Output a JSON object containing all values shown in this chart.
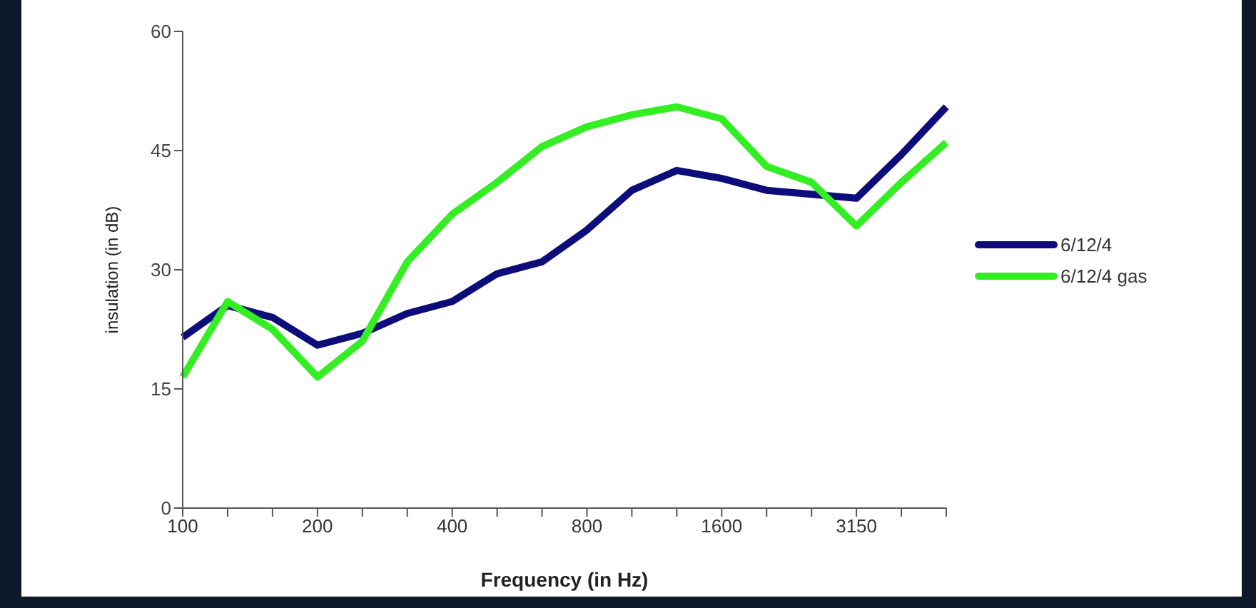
{
  "chart_data": {
    "type": "line",
    "xlabel": "Frequency (in Hz)",
    "ylabel": "insulation (in dB)",
    "categories": [
      "100",
      null,
      null,
      "200",
      null,
      null,
      "400",
      null,
      null,
      "800",
      null,
      null,
      "1600",
      null,
      null,
      "3150",
      null,
      null
    ],
    "series": [
      {
        "name": "6/12/4",
        "color": "#0c0c7a",
        "values": [
          21.5,
          25.5,
          24,
          20.5,
          22,
          24.5,
          26,
          29.5,
          31,
          35,
          40,
          42.5,
          41.5,
          40,
          39.5,
          39,
          44.5,
          50.5
        ]
      },
      {
        "name": "6/12/4 gas",
        "color": "#33ee22",
        "values": [
          16.5,
          26,
          22.5,
          16.5,
          21,
          31,
          37,
          41,
          45.5,
          48,
          49.5,
          50.5,
          49,
          43,
          41,
          35.5,
          41,
          46
        ]
      }
    ],
    "ylim": [
      0,
      60
    ],
    "yticks": [
      0,
      15,
      30,
      45,
      60
    ],
    "legend": "right",
    "marker": "none",
    "line_style": "solid"
  }
}
